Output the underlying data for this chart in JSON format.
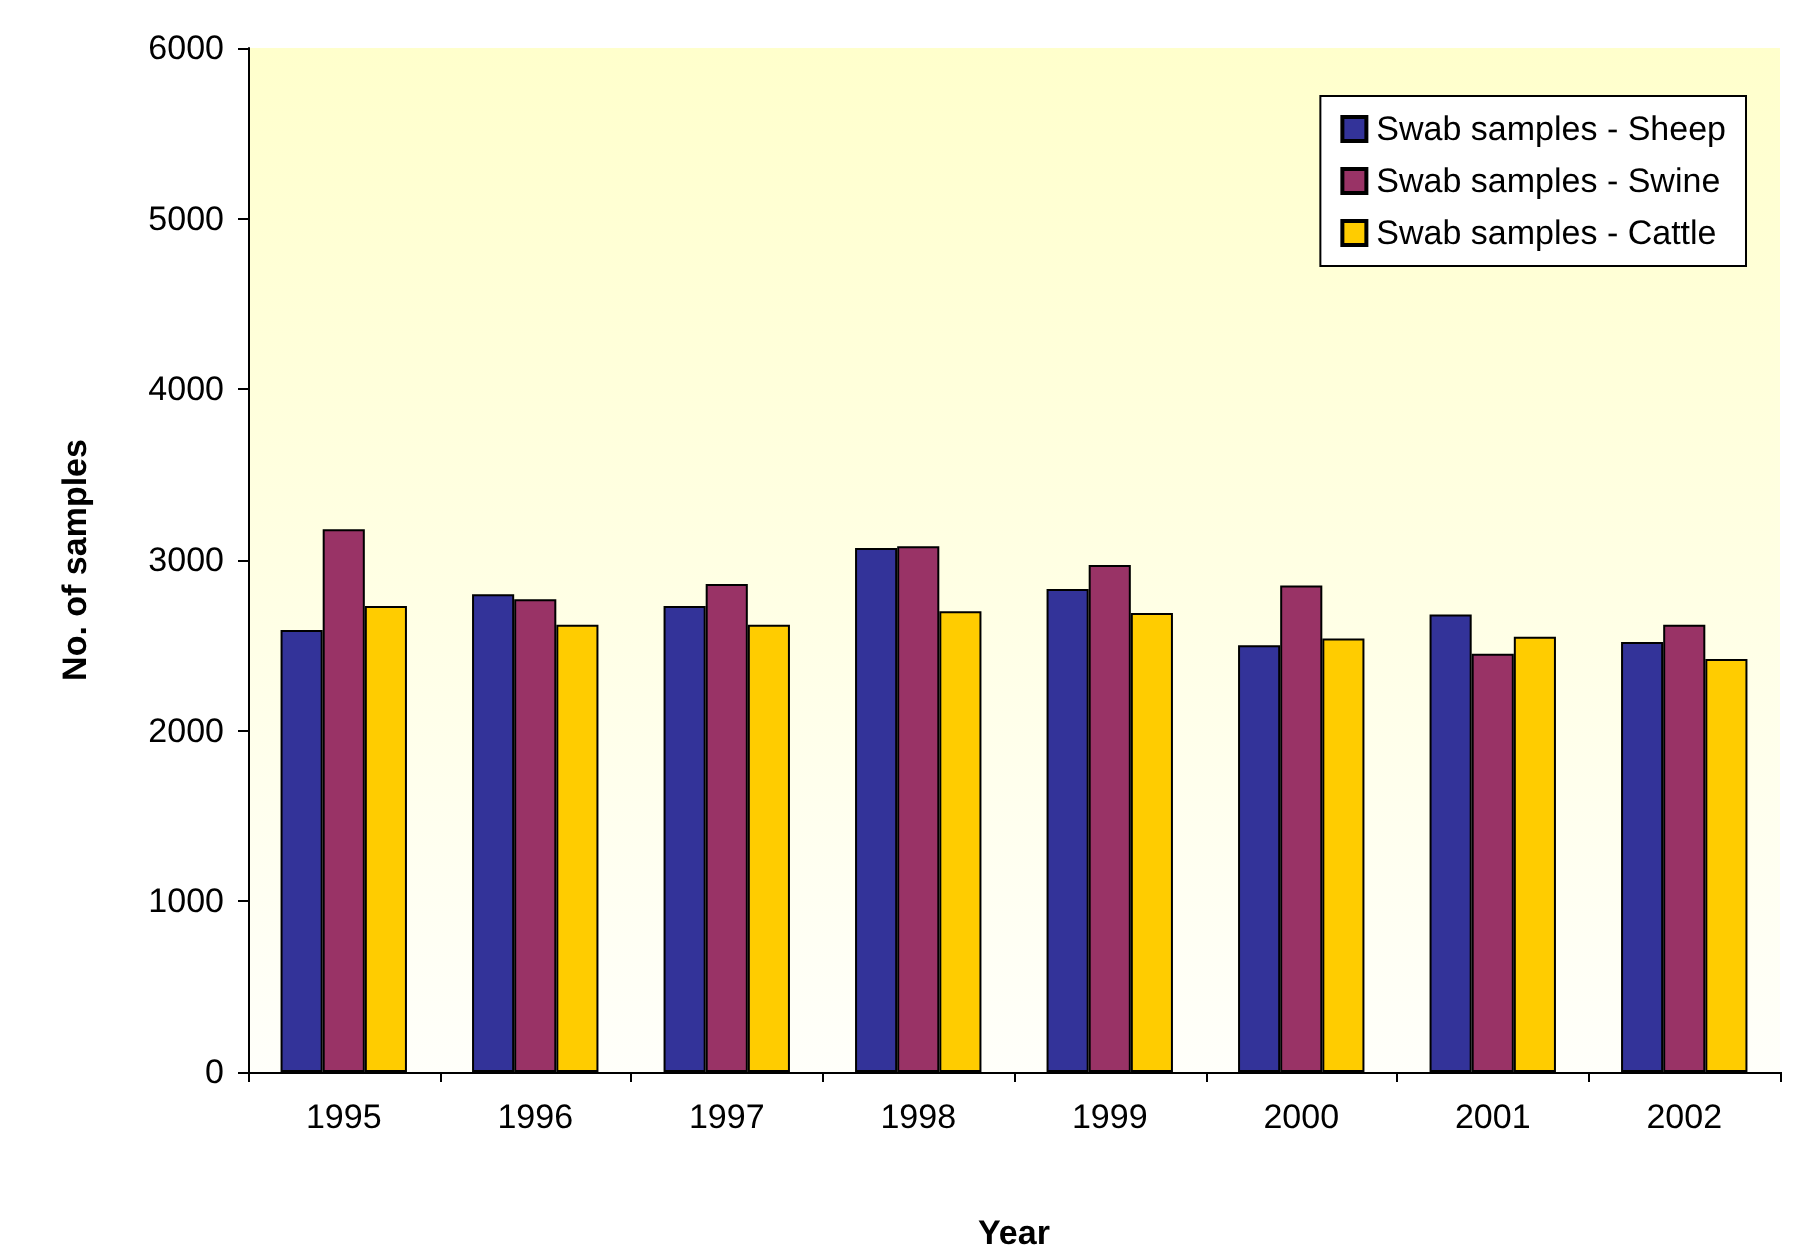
{
  "chart_data": {
    "type": "bar",
    "xlabel": "Year",
    "ylabel": "No. of samples",
    "categories": [
      "1995",
      "1996",
      "1997",
      "1998",
      "1999",
      "2000",
      "2001",
      "2002"
    ],
    "series": [
      {
        "name": "Swab samples - Sheep",
        "color": "#333399",
        "values": [
          2590,
          2800,
          2730,
          3070,
          2830,
          2500,
          2680,
          2520
        ]
      },
      {
        "name": "Swab samples - Swine",
        "color": "#993366",
        "values": [
          3180,
          2770,
          2860,
          3080,
          2970,
          2850,
          2450,
          2620
        ]
      },
      {
        "name": "Swab samples - Cattle",
        "color": "#ffcc00",
        "values": [
          2730,
          2620,
          2620,
          2700,
          2690,
          2540,
          2550,
          2420
        ]
      }
    ],
    "ylim": [
      0,
      6000
    ],
    "yticks": [
      0,
      1000,
      2000,
      3000,
      4000,
      5000,
      6000
    ],
    "grid": false,
    "legend": "top right"
  }
}
